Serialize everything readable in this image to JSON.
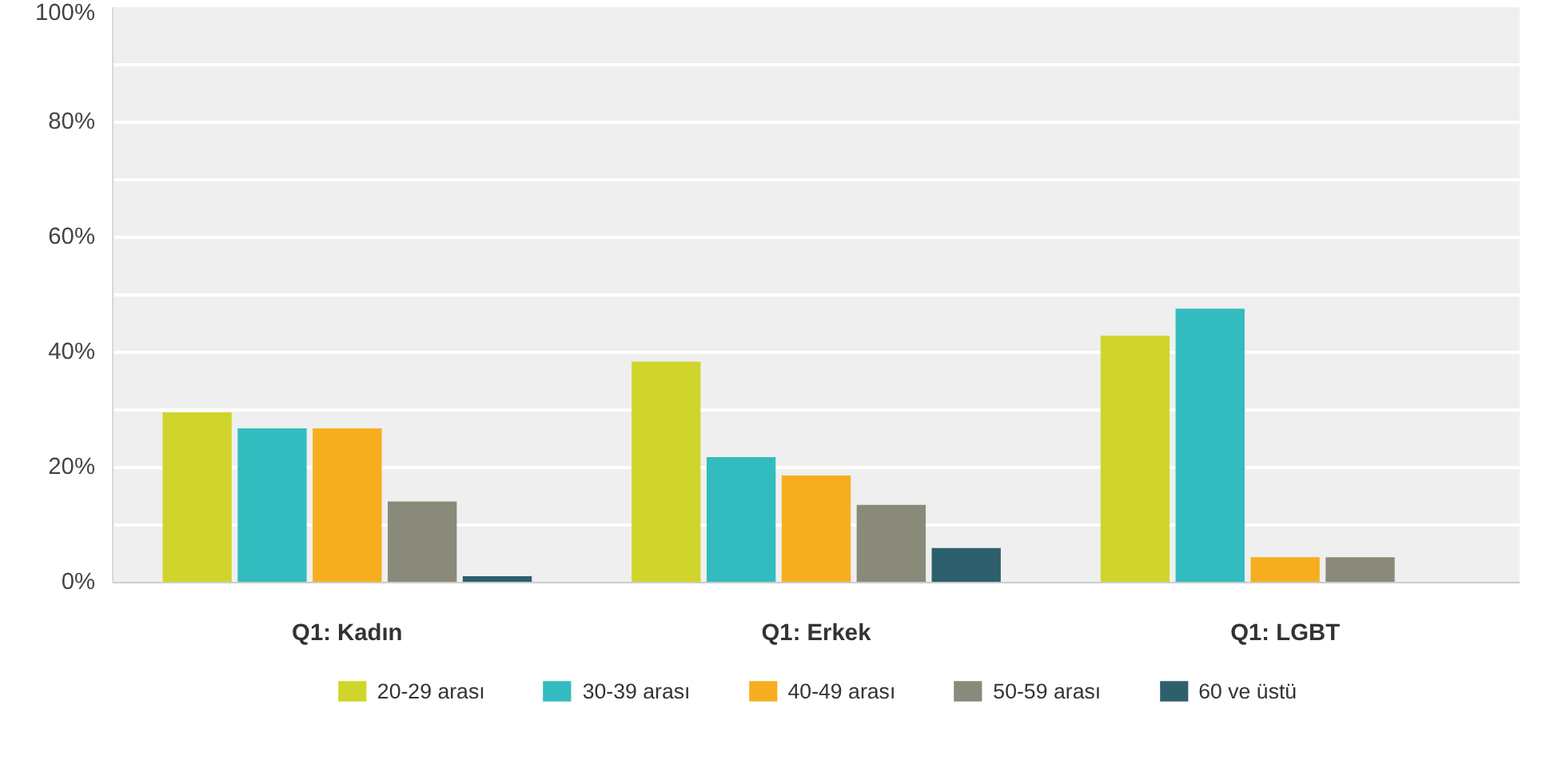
{
  "chart_data": {
    "type": "bar",
    "categories": [
      "Q1: Kadın",
      "Q1: Erkek",
      "Q1: LGBT"
    ],
    "series": [
      {
        "name": "20-29 arası",
        "color": "#cfd52a",
        "values": [
          29.6,
          38.4,
          42.9
        ]
      },
      {
        "name": "30-39 arası",
        "color": "#33bcbf",
        "values": [
          26.8,
          21.8,
          47.6
        ]
      },
      {
        "name": "40-49 arası",
        "color": "#f6ae20",
        "values": [
          26.8,
          18.6,
          4.4
        ]
      },
      {
        "name": "50-59 arası",
        "color": "#8a8a7a",
        "values": [
          14.1,
          13.5,
          4.4
        ]
      },
      {
        "name": "60 ve üstü",
        "color": "#2e5f6c",
        "values": [
          1.1,
          6.0,
          null
        ]
      }
    ],
    "ylim": [
      0,
      100
    ],
    "yticks": [
      {
        "value": 0,
        "label": "0%"
      },
      {
        "value": 10,
        "label": null
      },
      {
        "value": 20,
        "label": "20%"
      },
      {
        "value": 30,
        "label": null
      },
      {
        "value": 40,
        "label": "40%"
      },
      {
        "value": 50,
        "label": null
      },
      {
        "value": 60,
        "label": "60%"
      },
      {
        "value": 70,
        "label": null
      },
      {
        "value": 80,
        "label": "80%"
      },
      {
        "value": 90,
        "label": null
      },
      {
        "value": 100,
        "label": "100%"
      }
    ],
    "grid": "y",
    "legend": "bottom"
  }
}
